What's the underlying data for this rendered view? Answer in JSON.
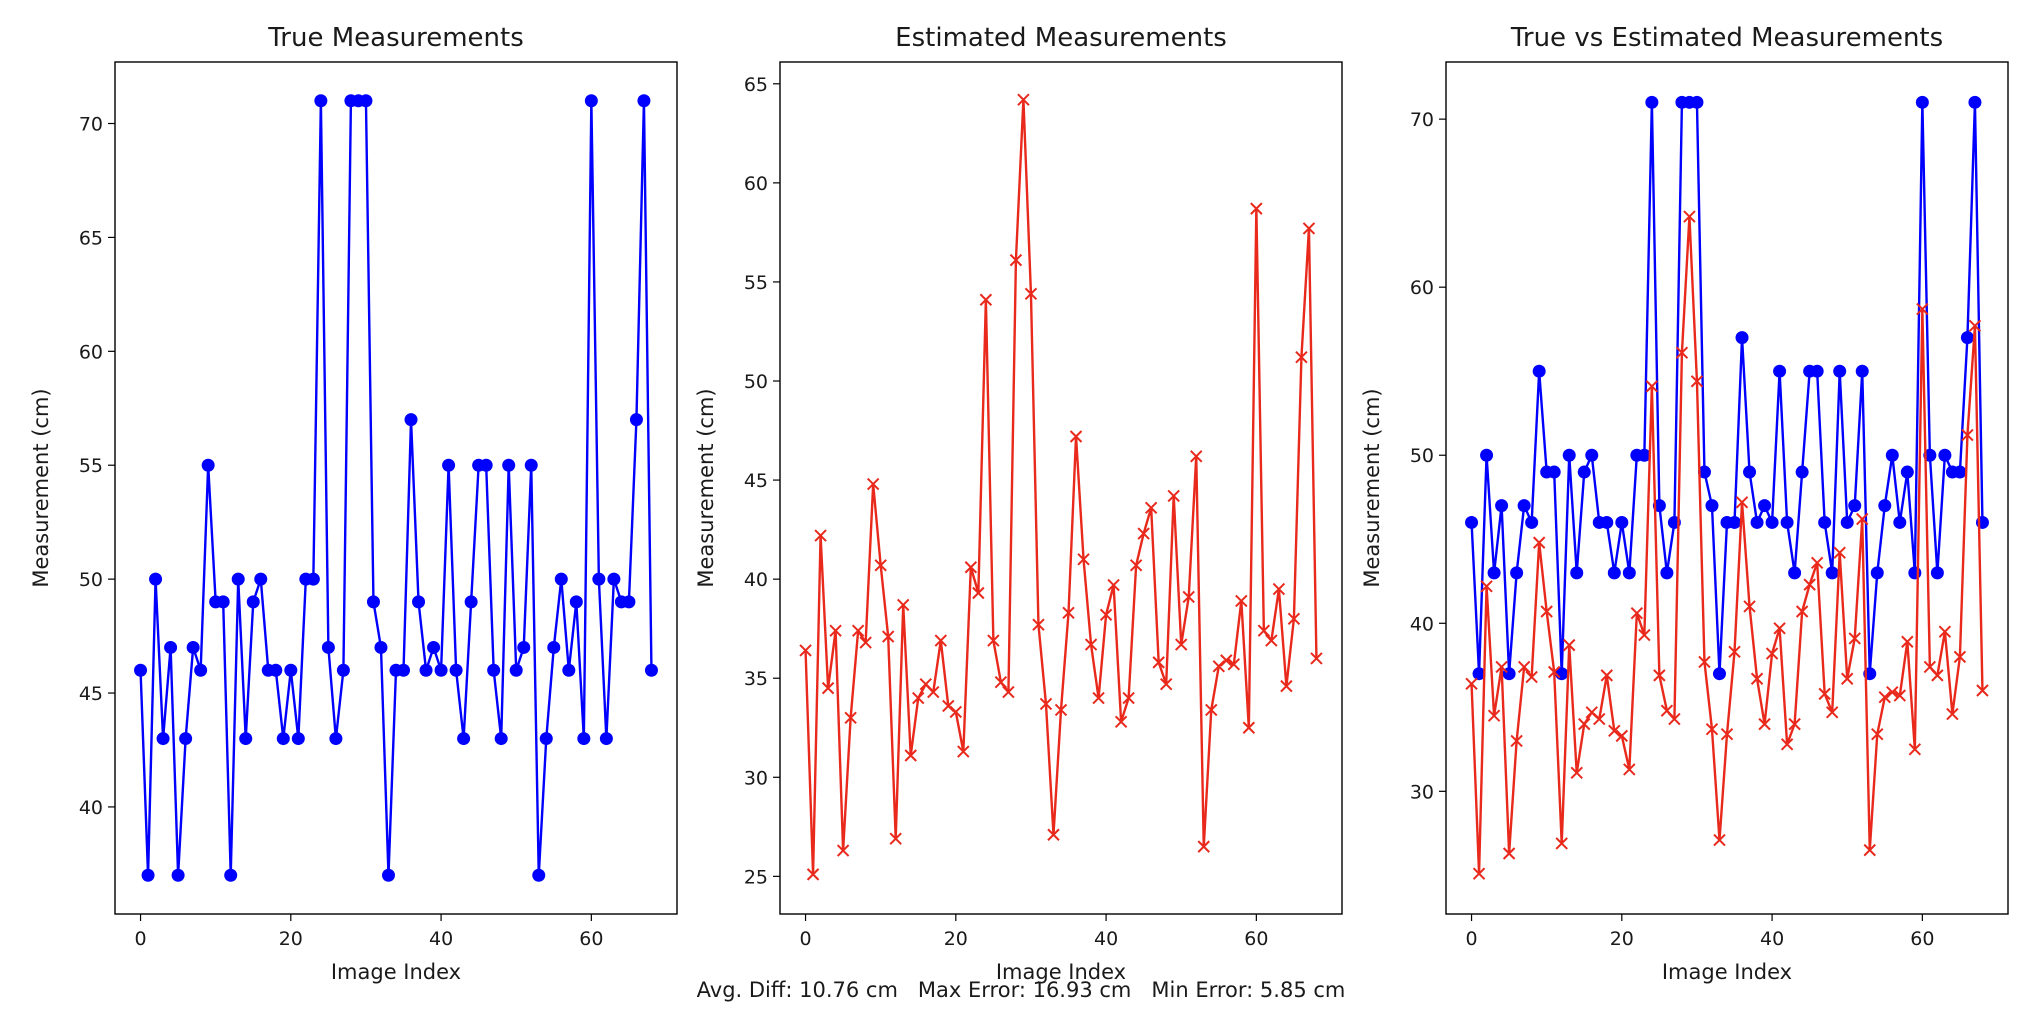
{
  "chart_data": [
    {
      "type": "line",
      "title": "True Measurements",
      "xlabel": "Image Index",
      "ylabel": "Measurement (cm)",
      "xlim": [
        -3.4,
        71.4
      ],
      "ylim": [
        35.3,
        72.7
      ],
      "xticks": [
        0,
        20,
        40,
        60
      ],
      "yticks": [
        40,
        45,
        50,
        55,
        60,
        65,
        70
      ],
      "grid": false,
      "series": [
        {
          "color": "#0000ff",
          "marker": "circle",
          "x": [
            0,
            1,
            2,
            3,
            4,
            5,
            6,
            7,
            8,
            9,
            10,
            11,
            12,
            13,
            14,
            15,
            16,
            17,
            18,
            19,
            20,
            21,
            22,
            23,
            24,
            25,
            26,
            27,
            28,
            29,
            30,
            31,
            32,
            33,
            34,
            35,
            36,
            37,
            38,
            39,
            40,
            41,
            42,
            43,
            44,
            45,
            46,
            47,
            48,
            49,
            50,
            51,
            52,
            53,
            54,
            55,
            56,
            57,
            58,
            59,
            60,
            61,
            62,
            63,
            64,
            65,
            66,
            67,
            68
          ],
          "y": [
            46,
            37,
            50,
            43,
            47,
            37,
            43,
            47,
            46,
            55,
            49,
            49,
            37,
            50,
            43,
            49,
            50,
            46,
            46,
            43,
            46,
            43,
            50,
            50,
            71,
            47,
            43,
            46,
            71,
            71,
            71,
            49,
            47,
            37,
            46,
            46,
            57,
            49,
            46,
            47,
            46,
            55,
            46,
            43,
            49,
            55,
            55,
            46,
            43,
            55,
            46,
            47,
            55,
            37,
            43,
            47,
            50,
            46,
            49,
            43,
            71,
            50,
            43,
            50,
            49,
            49,
            57,
            71,
            46
          ]
        }
      ]
    },
    {
      "type": "line",
      "title": "Estimated Measurements",
      "xlabel": "Image Index",
      "ylabel": "Measurement (cm)",
      "xlim": [
        -3.4,
        71.4
      ],
      "ylim": [
        23.1,
        66.1
      ],
      "xticks": [
        0,
        20,
        40,
        60
      ],
      "yticks": [
        25,
        30,
        35,
        40,
        45,
        50,
        55,
        60,
        65
      ],
      "grid": false,
      "series": [
        {
          "color": "#e8291c",
          "marker": "x",
          "x": [
            0,
            1,
            2,
            3,
            4,
            5,
            6,
            7,
            8,
            9,
            10,
            11,
            12,
            13,
            14,
            15,
            16,
            17,
            18,
            19,
            20,
            21,
            22,
            23,
            24,
            25,
            26,
            27,
            28,
            29,
            30,
            31,
            32,
            33,
            34,
            35,
            36,
            37,
            38,
            39,
            40,
            41,
            42,
            43,
            44,
            45,
            46,
            47,
            48,
            49,
            50,
            51,
            52,
            53,
            54,
            55,
            56,
            57,
            58,
            59,
            60,
            61,
            62,
            63,
            64,
            65,
            66,
            67,
            68
          ],
          "y": [
            36.4,
            25.1,
            42.2,
            34.5,
            37.4,
            26.3,
            33.0,
            37.4,
            36.8,
            44.8,
            40.7,
            37.1,
            26.9,
            38.7,
            31.1,
            34.0,
            34.7,
            34.3,
            36.9,
            33.6,
            33.3,
            31.3,
            40.6,
            39.3,
            54.1,
            36.9,
            34.8,
            34.3,
            56.1,
            64.2,
            54.4,
            37.7,
            33.7,
            27.1,
            33.4,
            38.3,
            47.2,
            41.0,
            36.7,
            34.0,
            38.2,
            39.7,
            32.8,
            34.0,
            40.7,
            42.3,
            43.6,
            35.8,
            34.7,
            44.2,
            36.7,
            39.1,
            46.2,
            26.5,
            33.4,
            35.6,
            35.9,
            35.7,
            38.9,
            32.5,
            58.7,
            37.4,
            36.9,
            39.5,
            34.6,
            38.0,
            51.2,
            57.7,
            36.0
          ]
        }
      ]
    },
    {
      "type": "line",
      "title": "True vs Estimated Measurements",
      "xlabel": "Image Index",
      "ylabel": "Measurement (cm)",
      "xlim": [
        -3.4,
        71.4
      ],
      "ylim": [
        22.7,
        73.4
      ],
      "xticks": [
        0,
        20,
        40,
        60
      ],
      "yticks": [
        30,
        40,
        50,
        60,
        70
      ],
      "grid": false,
      "series": [
        {
          "color": "#0000ff",
          "marker": "circle",
          "x": [
            0,
            1,
            2,
            3,
            4,
            5,
            6,
            7,
            8,
            9,
            10,
            11,
            12,
            13,
            14,
            15,
            16,
            17,
            18,
            19,
            20,
            21,
            22,
            23,
            24,
            25,
            26,
            27,
            28,
            29,
            30,
            31,
            32,
            33,
            34,
            35,
            36,
            37,
            38,
            39,
            40,
            41,
            42,
            43,
            44,
            45,
            46,
            47,
            48,
            49,
            50,
            51,
            52,
            53,
            54,
            55,
            56,
            57,
            58,
            59,
            60,
            61,
            62,
            63,
            64,
            65,
            66,
            67,
            68
          ],
          "y": [
            46,
            37,
            50,
            43,
            47,
            37,
            43,
            47,
            46,
            55,
            49,
            49,
            37,
            50,
            43,
            49,
            50,
            46,
            46,
            43,
            46,
            43,
            50,
            50,
            71,
            47,
            43,
            46,
            71,
            71,
            71,
            49,
            47,
            37,
            46,
            46,
            57,
            49,
            46,
            47,
            46,
            55,
            46,
            43,
            49,
            55,
            55,
            46,
            43,
            55,
            46,
            47,
            55,
            37,
            43,
            47,
            50,
            46,
            49,
            43,
            71,
            50,
            43,
            50,
            49,
            49,
            57,
            71,
            46
          ]
        },
        {
          "color": "#e8291c",
          "marker": "x",
          "x": [
            0,
            1,
            2,
            3,
            4,
            5,
            6,
            7,
            8,
            9,
            10,
            11,
            12,
            13,
            14,
            15,
            16,
            17,
            18,
            19,
            20,
            21,
            22,
            23,
            24,
            25,
            26,
            27,
            28,
            29,
            30,
            31,
            32,
            33,
            34,
            35,
            36,
            37,
            38,
            39,
            40,
            41,
            42,
            43,
            44,
            45,
            46,
            47,
            48,
            49,
            50,
            51,
            52,
            53,
            54,
            55,
            56,
            57,
            58,
            59,
            60,
            61,
            62,
            63,
            64,
            65,
            66,
            67,
            68
          ],
          "y": [
            36.4,
            25.1,
            42.2,
            34.5,
            37.4,
            26.3,
            33.0,
            37.4,
            36.8,
            44.8,
            40.7,
            37.1,
            26.9,
            38.7,
            31.1,
            34.0,
            34.7,
            34.3,
            36.9,
            33.6,
            33.3,
            31.3,
            40.6,
            39.3,
            54.1,
            36.9,
            34.8,
            34.3,
            56.1,
            64.2,
            54.4,
            37.7,
            33.7,
            27.1,
            33.4,
            38.3,
            47.2,
            41.0,
            36.7,
            34.0,
            38.2,
            39.7,
            32.8,
            34.0,
            40.7,
            42.3,
            43.6,
            35.8,
            34.7,
            44.2,
            36.7,
            39.1,
            46.2,
            26.5,
            33.4,
            35.6,
            35.9,
            35.7,
            38.9,
            32.5,
            58.7,
            37.4,
            36.9,
            39.5,
            34.6,
            38.0,
            51.2,
            57.7,
            36.0
          ]
        }
      ]
    }
  ],
  "footer": {
    "text": "Avg. Diff: 10.76 cm   Max Error: 16.93 cm   Min Error: 5.85 cm"
  }
}
